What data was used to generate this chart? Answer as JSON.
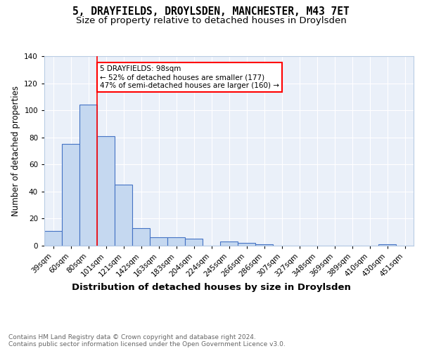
{
  "title1": "5, DRAYFIELDS, DROYLSDEN, MANCHESTER, M43 7ET",
  "title2": "Size of property relative to detached houses in Droylsden",
  "xlabel": "Distribution of detached houses by size in Droylsden",
  "ylabel": "Number of detached properties",
  "categories": [
    "39sqm",
    "60sqm",
    "80sqm",
    "101sqm",
    "121sqm",
    "142sqm",
    "163sqm",
    "183sqm",
    "204sqm",
    "224sqm",
    "245sqm",
    "266sqm",
    "286sqm",
    "307sqm",
    "327sqm",
    "348sqm",
    "369sqm",
    "389sqm",
    "410sqm",
    "430sqm",
    "451sqm"
  ],
  "values": [
    11,
    75,
    104,
    81,
    45,
    13,
    6,
    6,
    5,
    0,
    3,
    2,
    1,
    0,
    0,
    0,
    0,
    0,
    0,
    1,
    0
  ],
  "bar_color": "#c5d8f0",
  "bar_edge_color": "#4472c4",
  "red_line_index": 2.5,
  "annotation_text": "5 DRAYFIELDS: 98sqm\n← 52% of detached houses are smaller (177)\n47% of semi-detached houses are larger (160) →",
  "annotation_box_color": "white",
  "annotation_box_edge": "red",
  "ylim": [
    0,
    140
  ],
  "yticks": [
    0,
    20,
    40,
    60,
    80,
    100,
    120,
    140
  ],
  "footer_text": "Contains HM Land Registry data © Crown copyright and database right 2024.\nContains public sector information licensed under the Open Government Licence v3.0.",
  "background_color": "#eaf0f9",
  "grid_color": "white",
  "title1_fontsize": 10.5,
  "title2_fontsize": 9.5,
  "xlabel_fontsize": 9.5,
  "ylabel_fontsize": 8.5,
  "tick_fontsize": 7.5,
  "annotation_fontsize": 7.5,
  "footer_fontsize": 6.5
}
